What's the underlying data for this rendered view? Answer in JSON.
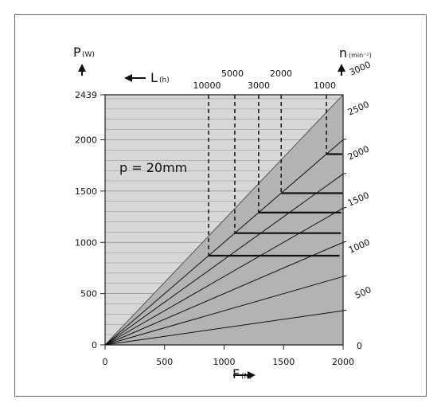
{
  "chart_data": {
    "type": "line",
    "xlabel": "F",
    "xunit": "(N)",
    "ylabel": "P",
    "yunit": "(W)",
    "life_label": "L",
    "life_unit": "(h)",
    "speed_label": "n",
    "speed_unit": "(min⁻¹)",
    "annotation": "p  =  20mm",
    "xlim": [
      0,
      2000
    ],
    "ylim": [
      0,
      2439
    ],
    "x_ticks": [
      0,
      500,
      1000,
      1500,
      2000
    ],
    "y_ticks": [
      0,
      500,
      1000,
      1500,
      2000,
      2439
    ],
    "speed_lines_rpm": [
      0,
      500,
      1000,
      1500,
      2000,
      2500,
      3000
    ],
    "speed_tick_labels": [
      "0",
      "500",
      "1000",
      "1500",
      "2000",
      "2500",
      "3000"
    ],
    "life_labels_row1": [
      "5000",
      "2000"
    ],
    "life_labels_row2": [
      "10000",
      "3000",
      "1000"
    ],
    "life_curves_hours": [
      10000,
      5000,
      3000,
      2000,
      1000
    ],
    "life_curve_top_F": {
      "10000": 870,
      "5000": 1090,
      "3000": 1290,
      "2000": 1480,
      "1000": 1860
    },
    "colors": {
      "panel": "#d7d7d7",
      "region": "#b3b3b3",
      "lines": "#111111"
    }
  }
}
